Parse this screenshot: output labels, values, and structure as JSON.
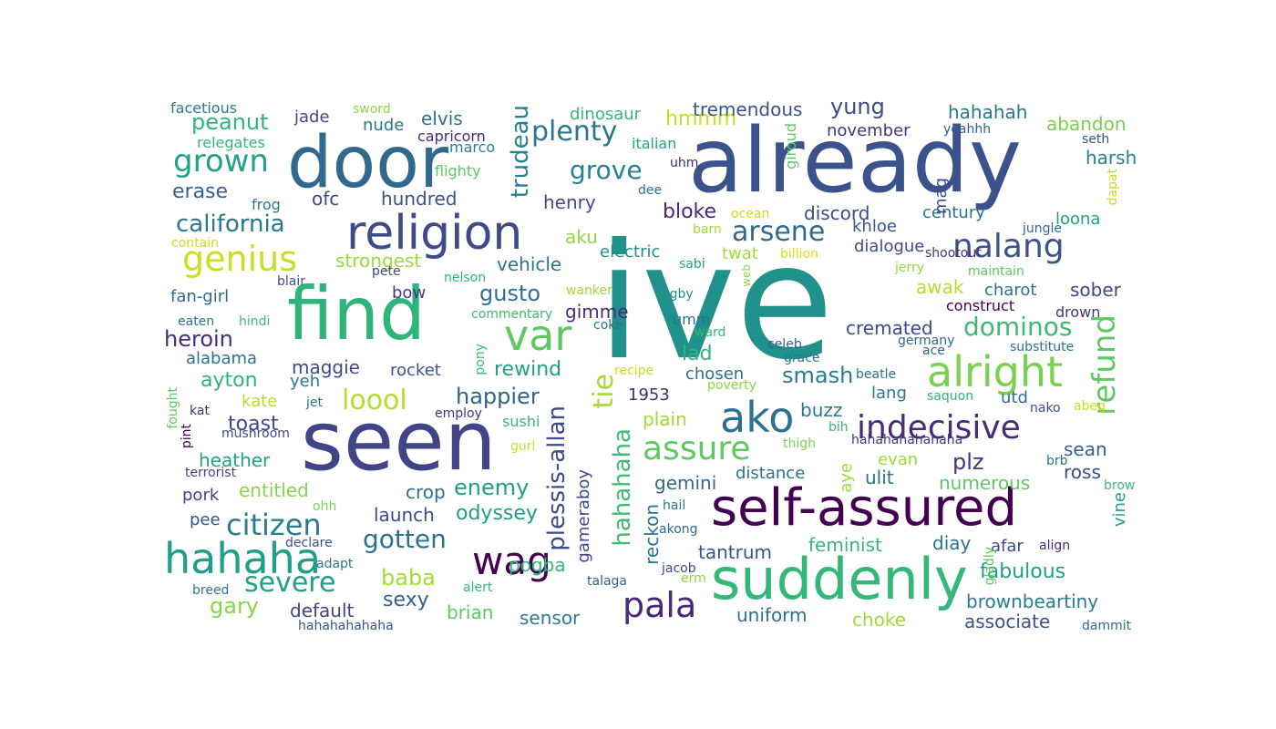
{
  "words": [
    {
      "text": "ive",
      "color": "#21918c"
    },
    {
      "text": "already",
      "color": "#3b528b"
    },
    {
      "text": "seen",
      "color": "#414487"
    },
    {
      "text": "door",
      "color": "#31688e"
    },
    {
      "text": "find",
      "color": "#2fb47c"
    },
    {
      "text": "self-assured",
      "color": "#440154"
    },
    {
      "text": "suddenly",
      "color": "#35b779"
    },
    {
      "text": "religion",
      "color": "#3e4a89"
    },
    {
      "text": "hahaha",
      "color": "#1f9e89"
    },
    {
      "text": "alright",
      "color": "#7ad151"
    },
    {
      "text": "var",
      "color": "#5ec962"
    },
    {
      "text": "ako",
      "color": "#2c728e"
    },
    {
      "text": "nalang",
      "color": "#3b528b"
    },
    {
      "text": "indecisive",
      "color": "#472c7a"
    },
    {
      "text": "grown",
      "color": "#20a386"
    },
    {
      "text": "genius",
      "color": "#c8e020"
    },
    {
      "text": "wag",
      "color": "#440154"
    },
    {
      "text": "pala",
      "color": "#482878"
    },
    {
      "text": "refund",
      "color": "#5ec962"
    },
    {
      "text": "citizen",
      "color": "#287d8e"
    },
    {
      "text": "severe",
      "color": "#1fa088"
    },
    {
      "text": "assure",
      "color": "#5ec962"
    },
    {
      "text": "loool",
      "color": "#b5de2b"
    },
    {
      "text": "arsene",
      "color": "#31688e"
    },
    {
      "text": "plenty",
      "color": "#2a788e"
    },
    {
      "text": "grove",
      "color": "#26828e"
    },
    {
      "text": "tie",
      "color": "#a5db36"
    },
    {
      "text": "dominos",
      "color": "#3bbb75"
    },
    {
      "text": "gotten",
      "color": "#2c728e"
    },
    {
      "text": "california",
      "color": "#2a788e"
    },
    {
      "text": "trudeau",
      "color": "#25838e"
    },
    {
      "text": "peanut",
      "color": "#2fb47c"
    },
    {
      "text": "happier",
      "color": "#33638d"
    },
    {
      "text": "hahahaha",
      "color": "#3fbc73"
    },
    {
      "text": "plessis-allan",
      "color": "#3e4a89"
    },
    {
      "text": "gusto",
      "color": "#2c728e"
    },
    {
      "text": "vehicle",
      "color": "#2a788e"
    },
    {
      "text": "ayton",
      "color": "#2fb47c"
    },
    {
      "text": "heroin",
      "color": "#472d7b"
    },
    {
      "text": "smash",
      "color": "#287d8e"
    },
    {
      "text": "strongest",
      "color": "#a0da39"
    },
    {
      "text": "rewind",
      "color": "#1fa088"
    },
    {
      "text": "enemy",
      "color": "#1f9e89"
    },
    {
      "text": "gary",
      "color": "#86d549"
    },
    {
      "text": "sexy",
      "color": "#355f8d"
    },
    {
      "text": "baba",
      "color": "#a5db36"
    },
    {
      "text": "default",
      "color": "#414487"
    },
    {
      "text": "erase",
      "color": "#355f8d"
    },
    {
      "text": "plz",
      "color": "#46337e"
    },
    {
      "text": "fabulous",
      "color": "#1fa188"
    },
    {
      "text": "brownbeartiny",
      "color": "#287d8e"
    },
    {
      "text": "associate",
      "color": "#3b528b"
    },
    {
      "text": "uniform",
      "color": "#2c728e"
    },
    {
      "text": "choke",
      "color": "#a0da39"
    },
    {
      "text": "sensor",
      "color": "#287d8e"
    },
    {
      "text": "brian",
      "color": "#5ec962"
    },
    {
      "text": "pogba",
      "color": "#35b779"
    },
    {
      "text": "odyssey",
      "color": "#1f9e89"
    },
    {
      "text": "launch",
      "color": "#3e4a89"
    },
    {
      "text": "crop",
      "color": "#2d708e"
    },
    {
      "text": "entitled",
      "color": "#86d549"
    },
    {
      "text": "pork",
      "color": "#414487"
    },
    {
      "text": "pee",
      "color": "#3b528b"
    },
    {
      "text": "heather",
      "color": "#20a386"
    },
    {
      "text": "toast",
      "color": "#3e4a89"
    },
    {
      "text": "kate",
      "color": "#b5de2b"
    },
    {
      "text": "maggie",
      "color": "#3e4a89"
    },
    {
      "text": "yeh",
      "color": "#2a788e"
    },
    {
      "text": "alabama",
      "color": "#2c728e"
    },
    {
      "text": "fan-girl",
      "color": "#31688e"
    },
    {
      "text": "bow",
      "color": "#453781"
    },
    {
      "text": "rocket",
      "color": "#3b528b"
    },
    {
      "text": "lad",
      "color": "#2fb47c"
    },
    {
      "text": "chosen",
      "color": "#2c728e"
    },
    {
      "text": "umm",
      "color": "#2c728e"
    },
    {
      "text": "gimme",
      "color": "#472d7b"
    },
    {
      "text": "aku",
      "color": "#90d743"
    },
    {
      "text": "electric",
      "color": "#21918c"
    },
    {
      "text": "henry",
      "color": "#3e4a89"
    },
    {
      "text": "hundred",
      "color": "#3b528b"
    },
    {
      "text": "ofc",
      "color": "#3e4a89"
    },
    {
      "text": "nude",
      "color": "#2a788e"
    },
    {
      "text": "elvis",
      "color": "#2c728e"
    },
    {
      "text": "jade",
      "color": "#3e4a89"
    },
    {
      "text": "capricorn",
      "color": "#472d7b"
    },
    {
      "text": "marco",
      "color": "#26828e"
    },
    {
      "text": "hmmm",
      "color": "#c8e020"
    },
    {
      "text": "dinosaur",
      "color": "#35b779"
    },
    {
      "text": "tremendous",
      "color": "#3b528b"
    },
    {
      "text": "yung",
      "color": "#3e4a89"
    },
    {
      "text": "november",
      "color": "#46337e"
    },
    {
      "text": "hahahah",
      "color": "#2a788e"
    },
    {
      "text": "abandon",
      "color": "#7ad151"
    },
    {
      "text": "harsh",
      "color": "#26828e"
    },
    {
      "text": "seth",
      "color": "#3b528b"
    },
    {
      "text": "yeahhh",
      "color": "#355f8d"
    },
    {
      "text": "italian",
      "color": "#22a884"
    },
    {
      "text": "uhm",
      "color": "#482878"
    },
    {
      "text": "dee",
      "color": "#2c728e"
    },
    {
      "text": "giroud",
      "color": "#5ec962"
    },
    {
      "text": "flighty",
      "color": "#5ec962"
    },
    {
      "text": "sword",
      "color": "#8fd744"
    },
    {
      "text": "facetious",
      "color": "#2a788e"
    },
    {
      "text": "relegates",
      "color": "#35b779"
    },
    {
      "text": "frog",
      "color": "#2a788e"
    },
    {
      "text": "bloke",
      "color": "#482878"
    },
    {
      "text": "discord",
      "color": "#3e4a89"
    },
    {
      "text": "century",
      "color": "#2c728e"
    },
    {
      "text": "loona",
      "color": "#1fa088"
    },
    {
      "text": "mag",
      "color": "#3e4a89"
    },
    {
      "text": "dapat",
      "color": "#c8e020"
    },
    {
      "text": "jungle",
      "color": "#31688e"
    },
    {
      "text": "khloe",
      "color": "#3b528b"
    },
    {
      "text": "dialogue",
      "color": "#3e4a89"
    },
    {
      "text": "shootout",
      "color": "#46337e"
    },
    {
      "text": "ocean",
      "color": "#c8e020"
    },
    {
      "text": "barn",
      "color": "#a0da39"
    },
    {
      "text": "twat",
      "color": "#a0da39"
    },
    {
      "text": "billion",
      "color": "#d8e219"
    },
    {
      "text": "sabi",
      "color": "#20a386"
    },
    {
      "text": "web",
      "color": "#90d743"
    },
    {
      "text": "jerry",
      "color": "#8fd744"
    },
    {
      "text": "maintain",
      "color": "#5ec962"
    },
    {
      "text": "awak",
      "color": "#b5de2b"
    },
    {
      "text": "charot",
      "color": "#2c728e"
    },
    {
      "text": "sober",
      "color": "#3e4a89"
    },
    {
      "text": "construct",
      "color": "#440154"
    },
    {
      "text": "drown",
      "color": "#46337e"
    },
    {
      "text": "cremated",
      "color": "#3e4a89"
    },
    {
      "text": "germany",
      "color": "#31688e"
    },
    {
      "text": "ace",
      "color": "#31688e"
    },
    {
      "text": "substitute",
      "color": "#2c728e"
    },
    {
      "text": "celeb",
      "color": "#355f8d"
    },
    {
      "text": "grace",
      "color": "#2a788e"
    },
    {
      "text": "ward",
      "color": "#35b779"
    },
    {
      "text": "beatle",
      "color": "#2c728e"
    },
    {
      "text": "lang",
      "color": "#2a788e"
    },
    {
      "text": "saquon",
      "color": "#2fb47c"
    },
    {
      "text": "utd",
      "color": "#2c728e"
    },
    {
      "text": "nako",
      "color": "#3e4a89"
    },
    {
      "text": "abeg",
      "color": "#c8e020"
    },
    {
      "text": "1953",
      "color": "#482878"
    },
    {
      "text": "buzz",
      "color": "#2a788e"
    },
    {
      "text": "bih",
      "color": "#35b779"
    },
    {
      "text": "hahahahahahaha",
      "color": "#46337e"
    },
    {
      "text": "sean",
      "color": "#355f8d"
    },
    {
      "text": "brb",
      "color": "#2c728e"
    },
    {
      "text": "ross",
      "color": "#3e4a89"
    },
    {
      "text": "aye",
      "color": "#a0da39"
    },
    {
      "text": "evan",
      "color": "#a0da39"
    },
    {
      "text": "ulit",
      "color": "#2c728e"
    },
    {
      "text": "numerous",
      "color": "#5ec962"
    },
    {
      "text": "vine",
      "color": "#1fa088"
    },
    {
      "text": "brow",
      "color": "#3bbb75"
    },
    {
      "text": "plain",
      "color": "#a0da39"
    },
    {
      "text": "gameraboy",
      "color": "#3e4a89"
    },
    {
      "text": "reckon",
      "color": "#2a788e"
    },
    {
      "text": "gemini",
      "color": "#31688e"
    },
    {
      "text": "distance",
      "color": "#2c728e"
    },
    {
      "text": "thigh",
      "color": "#7ad151"
    },
    {
      "text": "tantrum",
      "color": "#3b528b"
    },
    {
      "text": "feminist",
      "color": "#35b779"
    },
    {
      "text": "diay",
      "color": "#2c728e"
    },
    {
      "text": "afar",
      "color": "#3e4a89"
    },
    {
      "text": "align",
      "color": "#482878"
    },
    {
      "text": "gladly",
      "color": "#5ec962"
    },
    {
      "text": "jacob",
      "color": "#3e4a89"
    },
    {
      "text": "erm",
      "color": "#90d743"
    },
    {
      "text": "talaga",
      "color": "#355f8d"
    },
    {
      "text": "hail",
      "color": "#2a788e"
    },
    {
      "text": "akong",
      "color": "#31688e"
    },
    {
      "text": "sushi",
      "color": "#35b779"
    },
    {
      "text": "gurl",
      "color": "#c8e020"
    },
    {
      "text": "employ",
      "color": "#46337e"
    },
    {
      "text": "pony",
      "color": "#3bbb75"
    },
    {
      "text": "recipe",
      "color": "#c8e020"
    },
    {
      "text": "poverty",
      "color": "#90d743"
    },
    {
      "text": "coke",
      "color": "#2c728e"
    },
    {
      "text": "wanker",
      "color": "#a0da39"
    },
    {
      "text": "rugby",
      "color": "#21918c"
    },
    {
      "text": "commentary",
      "color": "#3bbb75"
    },
    {
      "text": "nelson",
      "color": "#2fb47c"
    },
    {
      "text": "pete",
      "color": "#3e4a89"
    },
    {
      "text": "blair",
      "color": "#3e4a89"
    },
    {
      "text": "contain",
      "color": "#c8e020"
    },
    {
      "text": "hindi",
      "color": "#3bbb75"
    },
    {
      "text": "eaten",
      "color": "#2c728e"
    },
    {
      "text": "kat",
      "color": "#472d7b"
    },
    {
      "text": "fought",
      "color": "#5ec962"
    },
    {
      "text": "pint",
      "color": "#440154"
    },
    {
      "text": "mushroom",
      "color": "#3e4a89"
    },
    {
      "text": "terrorist",
      "color": "#414487"
    },
    {
      "text": "jet",
      "color": "#2c728e"
    },
    {
      "text": "ohh",
      "color": "#7ad151"
    },
    {
      "text": "declare",
      "color": "#3b528b"
    },
    {
      "text": "adapt",
      "color": "#2c728e"
    },
    {
      "text": "breed",
      "color": "#2a788e"
    },
    {
      "text": "alert",
      "color": "#35b779"
    },
    {
      "text": "hahahahahaha",
      "color": "#3b528b"
    },
    {
      "text": "dammit",
      "color": "#31688e"
    }
  ]
}
